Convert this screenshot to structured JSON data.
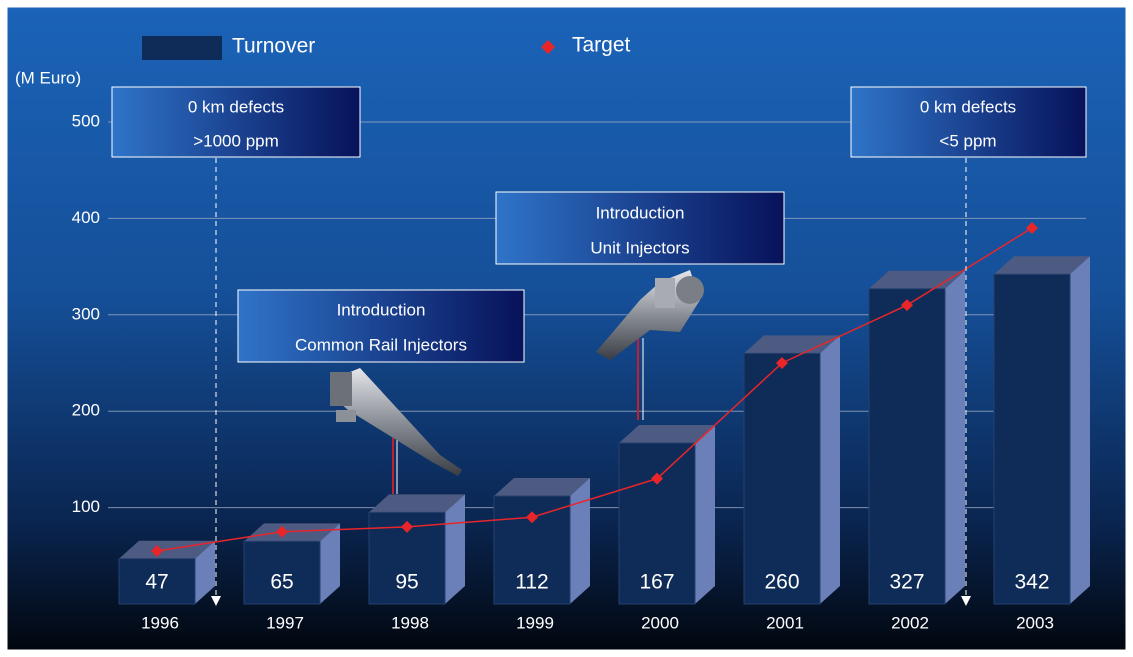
{
  "chart_data": {
    "type": "bar",
    "y_axis_label": "(M Euro)",
    "categories": [
      "1996",
      "1997",
      "1998",
      "1999",
      "2000",
      "2001",
      "2002",
      "2003"
    ],
    "series": [
      {
        "name": "Turnover",
        "color": "#0f2b57",
        "values": [
          47,
          65,
          95,
          112,
          167,
          260,
          327,
          342
        ]
      },
      {
        "name": "Target",
        "type": "line",
        "color": "#e8262a",
        "values": [
          55,
          75,
          80,
          90,
          130,
          250,
          310,
          390
        ]
      }
    ],
    "ylim": [
      0,
      500
    ],
    "yticks": [
      100,
      200,
      300,
      400,
      500
    ],
    "grid": true,
    "annotations": [
      {
        "lines": [
          "0 km defects",
          ">1000 ppm"
        ]
      },
      {
        "lines": [
          "Introduction",
          "Common Rail Injectors"
        ]
      },
      {
        "lines": [
          "Introduction",
          "Unit  Injectors"
        ]
      },
      {
        "lines": [
          "0 km defects",
          "<5 ppm"
        ]
      }
    ]
  }
}
